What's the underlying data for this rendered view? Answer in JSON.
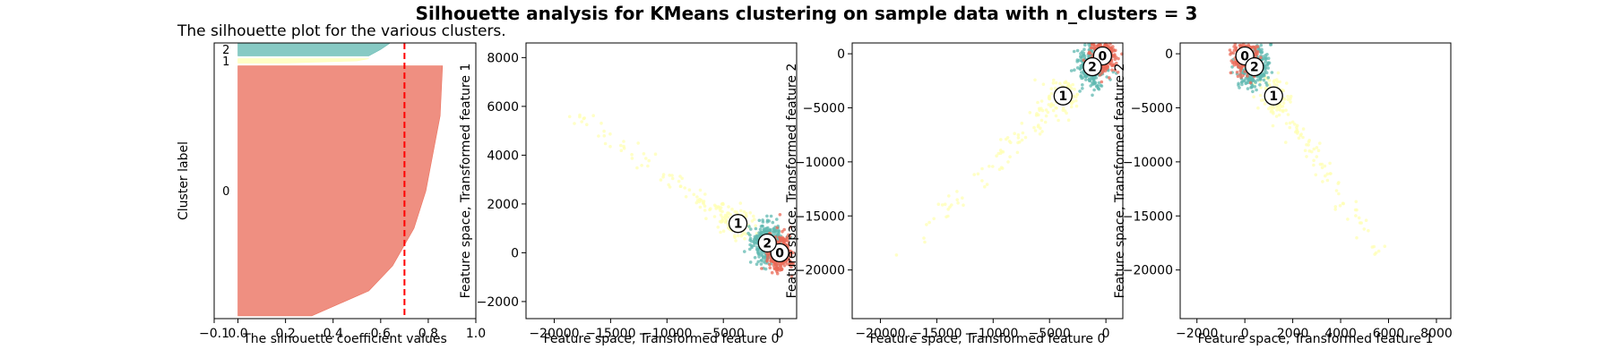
{
  "figure": {
    "title": "Silhouette analysis for KMeans clustering on sample data with n_clusters = 3"
  },
  "colors": {
    "cluster0": "#ea6a57",
    "cluster1": "#ffffb3",
    "cluster2": "#5fb8b0",
    "avg_line": "#ff0000"
  },
  "chart_data": [
    {
      "type": "area",
      "title": "The silhouette plot for the various clusters.",
      "xlabel": "The silhouette coefficient values",
      "ylabel": "Cluster label",
      "xlim": [
        -0.1,
        1.0
      ],
      "xticks": [
        "−0.1",
        "0.0",
        "0.2",
        "0.4",
        "0.6",
        "0.8",
        "1.0"
      ],
      "xtick_values": [
        -0.1,
        0.0,
        0.2,
        0.4,
        0.6,
        0.8,
        1.0
      ],
      "ylim": [
        0,
        1000
      ],
      "average_silhouette": 0.7,
      "clusters": [
        {
          "label": "0",
          "y_start": 10,
          "y_end": 917,
          "color": "#ea6a57",
          "profile": [
            [
              0,
              0.31
            ],
            [
              0.1,
              0.55
            ],
            [
              0.2,
              0.65
            ],
            [
              0.35,
              0.74
            ],
            [
              0.5,
              0.79
            ],
            [
              0.65,
              0.82
            ],
            [
              0.8,
              0.85
            ],
            [
              0.9,
              0.855
            ],
            [
              1.0,
              0.86
            ]
          ]
        },
        {
          "label": "1",
          "y_start": 927,
          "y_end": 943,
          "color": "#ffffb3",
          "profile": [
            [
              0,
              0.2
            ],
            [
              0.5,
              0.5
            ],
            [
              1.0,
              0.55
            ]
          ]
        },
        {
          "label": "2",
          "y_start": 953,
          "y_end": 1000,
          "color": "#5fb8b0",
          "profile": [
            [
              0,
              0.55
            ],
            [
              0.5,
              0.6
            ],
            [
              1.0,
              0.64
            ]
          ]
        }
      ]
    },
    {
      "type": "scatter",
      "xlabel": "Feature space, Transformed feature 0",
      "ylabel": "Feature space, Transformed feature 1",
      "xlim": [
        -22500,
        1500
      ],
      "ylim": [
        -2700,
        8600
      ],
      "xticks": [
        "−20000",
        "−15000",
        "−10000",
        "−5000",
        "0"
      ],
      "xtick_values": [
        -20000,
        -15000,
        -10000,
        -5000,
        0
      ],
      "yticks": [
        "−2000",
        "0",
        "2000",
        "4000",
        "6000",
        "8000"
      ],
      "ytick_values": [
        -2000,
        0,
        2000,
        4000,
        6000,
        8000
      ],
      "centers": [
        {
          "label": "0",
          "x": 0,
          "y": 0
        },
        {
          "label": "1",
          "x": -3700,
          "y": 1200
        },
        {
          "label": "2",
          "x": -1100,
          "y": 400
        }
      ]
    },
    {
      "type": "scatter",
      "xlabel": "Feature space, Transformed feature 0",
      "ylabel": "Feature space, Transformed feature 2",
      "xlim": [
        -22500,
        1500
      ],
      "ylim": [
        -24500,
        1000
      ],
      "xticks": [
        "−20000",
        "−15000",
        "−10000",
        "−5000",
        "0"
      ],
      "xtick_values": [
        -20000,
        -15000,
        -10000,
        -5000,
        0
      ],
      "yticks": [
        "−20000",
        "−15000",
        "−10000",
        "−5000",
        "0"
      ],
      "ytick_values": [
        -20000,
        -15000,
        -10000,
        -5000,
        0
      ],
      "centers": [
        {
          "label": "0",
          "x": -300,
          "y": -200
        },
        {
          "label": "1",
          "x": -3800,
          "y": -3900
        },
        {
          "label": "2",
          "x": -1200,
          "y": -1200
        }
      ]
    },
    {
      "type": "scatter",
      "xlabel": "Feature space, Transformed feature 1",
      "ylabel": "Feature space, Transformed feature 2",
      "xlim": [
        -2700,
        8600
      ],
      "ylim": [
        -24500,
        1000
      ],
      "xticks": [
        "−2000",
        "0",
        "2000",
        "4000",
        "6000",
        "8000"
      ],
      "xtick_values": [
        -2000,
        0,
        2000,
        4000,
        6000,
        8000
      ],
      "yticks": [
        "−20000",
        "−15000",
        "−10000",
        "−5000",
        "0"
      ],
      "ytick_values": [
        -20000,
        -15000,
        -10000,
        -5000,
        0
      ],
      "centers": [
        {
          "label": "0",
          "x": 0,
          "y": -200
        },
        {
          "label": "1",
          "x": 1200,
          "y": -3900
        },
        {
          "label": "2",
          "x": 400,
          "y": -1200
        }
      ]
    }
  ]
}
